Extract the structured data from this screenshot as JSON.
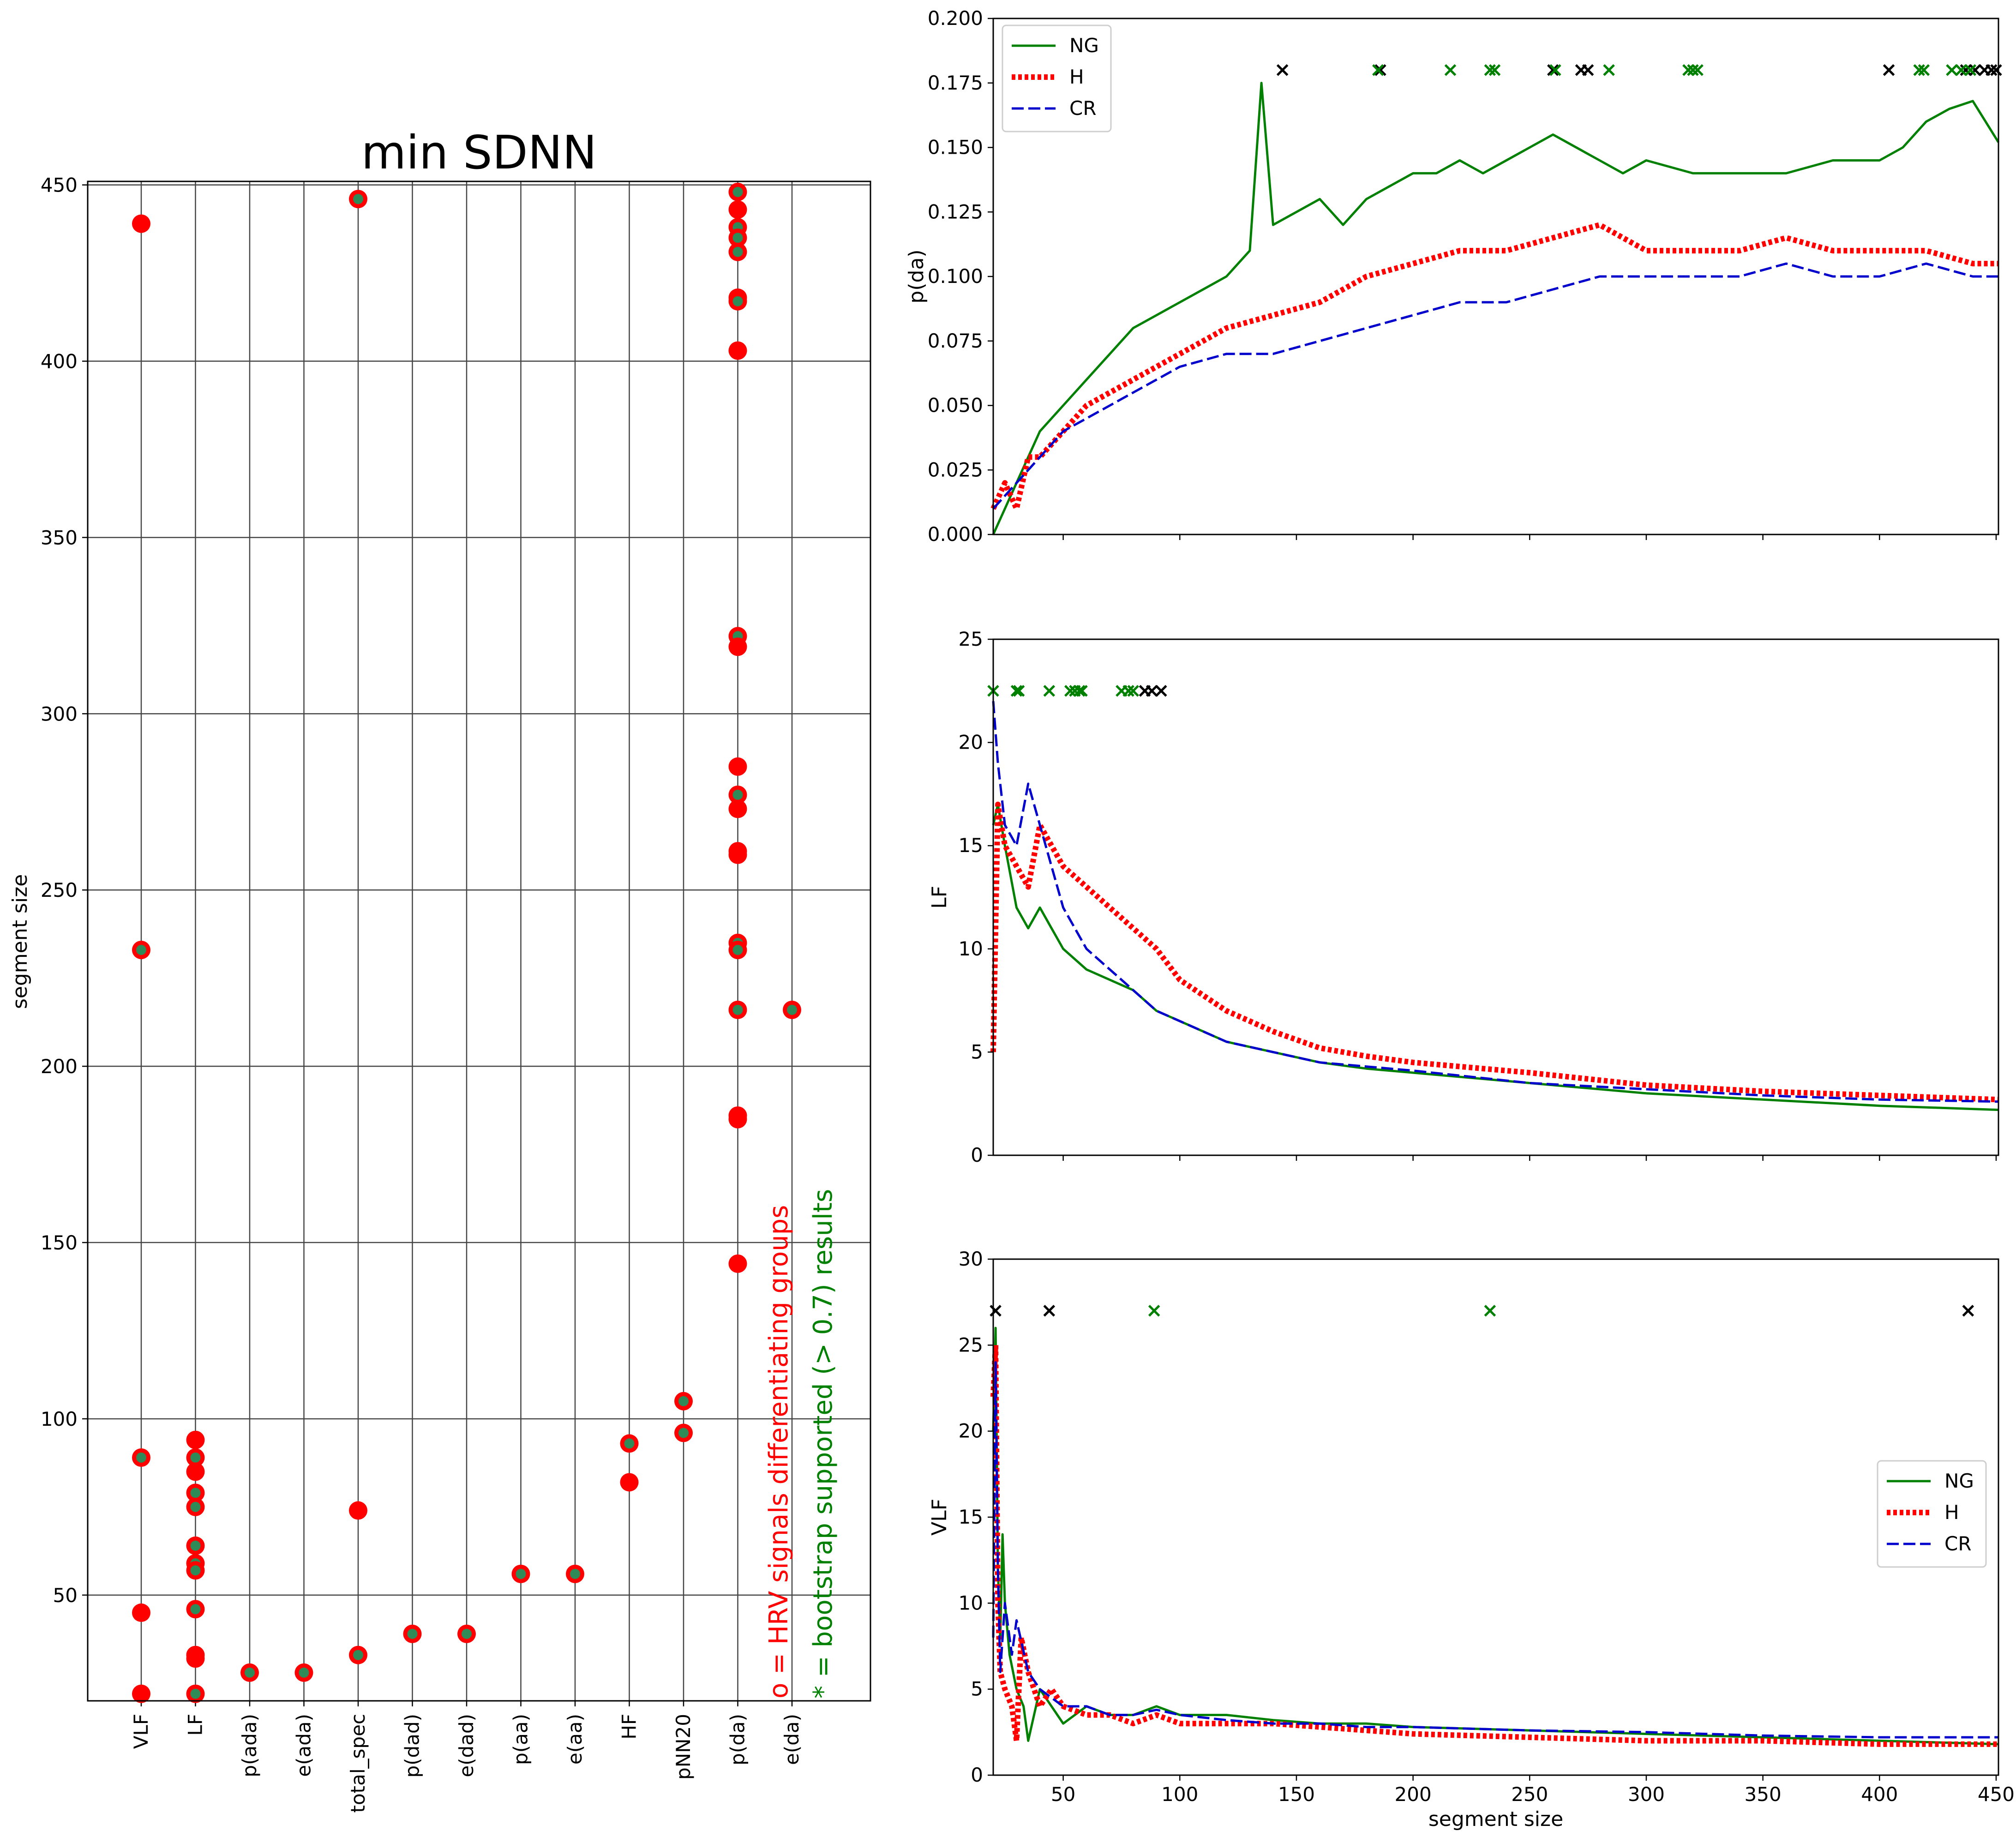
{
  "colors": {
    "NG": "#008000",
    "H": "#ff0000",
    "CR": "#0000cc",
    "marker_fill": "#ff0000",
    "marker_center": "#2e8b57",
    "cross_black": "#000000",
    "cross_green": "#008000"
  },
  "chart_data": [
    {
      "id": "left",
      "type": "scatter",
      "title": "min SDNN",
      "xlabel": "",
      "ylabel": "segment size",
      "ylim": [
        20,
        451
      ],
      "yticks": [
        "50",
        "100",
        "150",
        "200",
        "250",
        "300",
        "350",
        "400",
        "450"
      ],
      "categories": [
        "VLF",
        "LF",
        "p(ada)",
        "e(ada)",
        "total_spec",
        "p(dad)",
        "e(dad)",
        "p(aa)",
        "e(aa)",
        "HF",
        "pNN20",
        "p(da)",
        "e(da)"
      ],
      "points": [
        {
          "cat": 0,
          "y": 439,
          "b": 0
        },
        {
          "cat": 0,
          "y": 233,
          "b": 1
        },
        {
          "cat": 0,
          "y": 89,
          "b": 1
        },
        {
          "cat": 0,
          "y": 45,
          "b": 0
        },
        {
          "cat": 0,
          "y": 22,
          "b": 0
        },
        {
          "cat": 1,
          "y": 94,
          "b": 0
        },
        {
          "cat": 1,
          "y": 89,
          "b": 1
        },
        {
          "cat": 1,
          "y": 85,
          "b": 0
        },
        {
          "cat": 1,
          "y": 79,
          "b": 1
        },
        {
          "cat": 1,
          "y": 75,
          "b": 1
        },
        {
          "cat": 1,
          "y": 64,
          "b": 1
        },
        {
          "cat": 1,
          "y": 59,
          "b": 1
        },
        {
          "cat": 1,
          "y": 57,
          "b": 1
        },
        {
          "cat": 1,
          "y": 46,
          "b": 1
        },
        {
          "cat": 1,
          "y": 33,
          "b": 1
        },
        {
          "cat": 1,
          "y": 32,
          "b": 0
        },
        {
          "cat": 1,
          "y": 22,
          "b": 1
        },
        {
          "cat": 2,
          "y": 28,
          "b": 1
        },
        {
          "cat": 3,
          "y": 28,
          "b": 1
        },
        {
          "cat": 4,
          "y": 446,
          "b": 1
        },
        {
          "cat": 4,
          "y": 74,
          "b": 0
        },
        {
          "cat": 4,
          "y": 33,
          "b": 1
        },
        {
          "cat": 5,
          "y": 39,
          "b": 1
        },
        {
          "cat": 6,
          "y": 39,
          "b": 1
        },
        {
          "cat": 7,
          "y": 56,
          "b": 1
        },
        {
          "cat": 8,
          "y": 56,
          "b": 1
        },
        {
          "cat": 9,
          "y": 93,
          "b": 1
        },
        {
          "cat": 9,
          "y": 82,
          "b": 0
        },
        {
          "cat": 10,
          "y": 105,
          "b": 1
        },
        {
          "cat": 10,
          "y": 96,
          "b": 1
        },
        {
          "cat": 11,
          "y": 448,
          "b": 1
        },
        {
          "cat": 11,
          "y": 443,
          "b": 0
        },
        {
          "cat": 11,
          "y": 438,
          "b": 1
        },
        {
          "cat": 11,
          "y": 435,
          "b": 1
        },
        {
          "cat": 11,
          "y": 431,
          "b": 1
        },
        {
          "cat": 11,
          "y": 418,
          "b": 1
        },
        {
          "cat": 11,
          "y": 417,
          "b": 1
        },
        {
          "cat": 11,
          "y": 403,
          "b": 0
        },
        {
          "cat": 11,
          "y": 322,
          "b": 1
        },
        {
          "cat": 11,
          "y": 319,
          "b": 0
        },
        {
          "cat": 11,
          "y": 285,
          "b": 0
        },
        {
          "cat": 11,
          "y": 277,
          "b": 1
        },
        {
          "cat": 11,
          "y": 273,
          "b": 0
        },
        {
          "cat": 11,
          "y": 261,
          "b": 1
        },
        {
          "cat": 11,
          "y": 260,
          "b": 0
        },
        {
          "cat": 11,
          "y": 235,
          "b": 1
        },
        {
          "cat": 11,
          "y": 233,
          "b": 1
        },
        {
          "cat": 11,
          "y": 216,
          "b": 1
        },
        {
          "cat": 11,
          "y": 186,
          "b": 1
        },
        {
          "cat": 11,
          "y": 185,
          "b": 0
        },
        {
          "cat": 11,
          "y": 144,
          "b": 0
        },
        {
          "cat": 12,
          "y": 216,
          "b": 1
        }
      ],
      "annotations": [
        "o =  HRV signals differentiating groups",
        "* = bootstrap supported (> 0.7) results"
      ]
    },
    {
      "id": "pda",
      "type": "line",
      "ylabel": "p(da)",
      "xlim": [
        20,
        451
      ],
      "ylim": [
        0,
        0.2
      ],
      "yticks": [
        "0.000",
        "0.025",
        "0.050",
        "0.075",
        "0.100",
        "0.125",
        "0.150",
        "0.175",
        "0.200"
      ],
      "legend": {
        "position": "upper-left",
        "entries": [
          "NG",
          "H",
          "CR"
        ]
      },
      "series": [
        {
          "name": "NG",
          "style": "solid",
          "x": [
            20,
            25,
            30,
            35,
            40,
            45,
            50,
            60,
            70,
            80,
            90,
            100,
            110,
            120,
            130,
            135,
            140,
            150,
            160,
            170,
            180,
            190,
            200,
            210,
            220,
            230,
            240,
            250,
            260,
            270,
            280,
            290,
            300,
            320,
            340,
            360,
            380,
            400,
            410,
            420,
            430,
            440,
            451
          ],
          "y": [
            0.0,
            0.01,
            0.02,
            0.03,
            0.04,
            0.045,
            0.05,
            0.06,
            0.07,
            0.08,
            0.085,
            0.09,
            0.095,
            0.1,
            0.11,
            0.175,
            0.12,
            0.125,
            0.13,
            0.12,
            0.13,
            0.135,
            0.14,
            0.14,
            0.145,
            0.14,
            0.145,
            0.15,
            0.155,
            0.15,
            0.145,
            0.14,
            0.145,
            0.14,
            0.14,
            0.14,
            0.145,
            0.145,
            0.15,
            0.16,
            0.165,
            0.168,
            0.152
          ]
        },
        {
          "name": "H",
          "style": "dotted",
          "x": [
            20,
            25,
            30,
            35,
            40,
            45,
            50,
            60,
            70,
            80,
            90,
            100,
            120,
            140,
            160,
            180,
            200,
            220,
            240,
            260,
            280,
            300,
            320,
            340,
            360,
            380,
            400,
            420,
            440,
            451
          ],
          "y": [
            0.01,
            0.02,
            0.01,
            0.03,
            0.03,
            0.035,
            0.04,
            0.05,
            0.055,
            0.06,
            0.065,
            0.07,
            0.08,
            0.085,
            0.09,
            0.1,
            0.105,
            0.11,
            0.11,
            0.115,
            0.12,
            0.11,
            0.11,
            0.11,
            0.115,
            0.11,
            0.11,
            0.11,
            0.105,
            0.105
          ]
        },
        {
          "name": "CR",
          "style": "dashed",
          "x": [
            20,
            25,
            30,
            35,
            40,
            45,
            50,
            60,
            70,
            80,
            90,
            100,
            120,
            140,
            160,
            180,
            200,
            220,
            240,
            260,
            280,
            300,
            320,
            340,
            360,
            380,
            400,
            420,
            440,
            451
          ],
          "y": [
            0.01,
            0.015,
            0.02,
            0.025,
            0.03,
            0.035,
            0.04,
            0.045,
            0.05,
            0.055,
            0.06,
            0.065,
            0.07,
            0.07,
            0.075,
            0.08,
            0.085,
            0.09,
            0.09,
            0.095,
            0.1,
            0.1,
            0.1,
            0.1,
            0.105,
            0.1,
            0.1,
            0.105,
            0.1,
            0.1
          ]
        }
      ],
      "crosses": {
        "y": 0.18,
        "black": [
          144,
          186,
          260,
          272,
          275,
          404,
          437,
          441,
          445,
          448,
          450
        ],
        "green": [
          185,
          216,
          233,
          235,
          261,
          284,
          318,
          320,
          322,
          417,
          419,
          431,
          435,
          439
        ]
      }
    },
    {
      "id": "lf",
      "type": "line",
      "ylabel": "LF",
      "xlim": [
        20,
        451
      ],
      "ylim": [
        0,
        25
      ],
      "yticks": [
        "0",
        "5",
        "10",
        "15",
        "20",
        "25"
      ],
      "series": [
        {
          "name": "NG",
          "style": "solid",
          "x": [
            20,
            22,
            25,
            30,
            35,
            40,
            45,
            50,
            60,
            70,
            80,
            90,
            100,
            120,
            140,
            160,
            180,
            200,
            250,
            300,
            350,
            400,
            451
          ],
          "y": [
            16,
            17,
            15,
            12,
            11,
            12,
            11,
            10,
            9,
            8.5,
            8,
            7,
            6.5,
            5.5,
            5,
            4.5,
            4.2,
            4,
            3.5,
            3,
            2.7,
            2.4,
            2.2
          ]
        },
        {
          "name": "H",
          "style": "dotted",
          "x": [
            20,
            22,
            25,
            30,
            35,
            40,
            45,
            50,
            60,
            70,
            80,
            90,
            100,
            120,
            140,
            160,
            180,
            200,
            250,
            300,
            350,
            400,
            451
          ],
          "y": [
            5,
            17,
            15,
            14,
            13,
            16,
            15,
            14,
            13,
            12,
            11,
            10,
            8.5,
            7,
            6,
            5.2,
            4.8,
            4.5,
            4,
            3.4,
            3.1,
            2.9,
            2.7
          ]
        },
        {
          "name": "CR",
          "style": "dashed",
          "x": [
            20,
            22,
            25,
            30,
            35,
            40,
            45,
            50,
            60,
            70,
            80,
            90,
            100,
            120,
            140,
            160,
            180,
            200,
            250,
            300,
            350,
            400,
            451
          ],
          "y": [
            22,
            19,
            16,
            15,
            18,
            16,
            14,
            12,
            10,
            9,
            8,
            7,
            6.5,
            5.5,
            5,
            4.5,
            4.3,
            4.1,
            3.5,
            3.2,
            2.9,
            2.7,
            2.6
          ]
        }
      ],
      "crosses": {
        "y": 22.5,
        "black": [
          85,
          88,
          92
        ],
        "green": [
          20,
          30,
          31,
          44,
          53,
          55,
          57,
          58,
          75,
          78,
          80
        ]
      }
    },
    {
      "id": "vlf",
      "type": "line",
      "ylabel": "VLF",
      "xlabel": "segment size",
      "xlim": [
        20,
        451
      ],
      "ylim": [
        0,
        30
      ],
      "yticks": [
        "0",
        "5",
        "10",
        "15",
        "20",
        "25",
        "30"
      ],
      "xticks": [
        "50",
        "100",
        "150",
        "200",
        "250",
        "300",
        "350",
        "400",
        "450"
      ],
      "legend": {
        "position": "center-right",
        "entries": [
          "NG",
          "H",
          "CR"
        ]
      },
      "series": [
        {
          "name": "NG",
          "style": "solid",
          "x": [
            20,
            21,
            22,
            23,
            24,
            25,
            27,
            30,
            33,
            35,
            40,
            45,
            50,
            60,
            70,
            80,
            90,
            100,
            120,
            140,
            160,
            180,
            200,
            250,
            300,
            350,
            400,
            451
          ],
          "y": [
            20,
            26,
            12,
            8,
            14,
            10,
            7,
            5,
            4,
            2,
            5,
            4,
            3,
            4,
            3.5,
            3.5,
            4,
            3.5,
            3.5,
            3.2,
            3,
            3,
            2.8,
            2.6,
            2.4,
            2.2,
            2,
            1.8
          ]
        },
        {
          "name": "H",
          "style": "dotted",
          "x": [
            20,
            21,
            22,
            23,
            25,
            28,
            30,
            32,
            35,
            40,
            45,
            50,
            60,
            70,
            80,
            90,
            100,
            120,
            140,
            160,
            180,
            200,
            250,
            300,
            350,
            400,
            451
          ],
          "y": [
            22,
            25,
            10,
            6,
            5,
            4,
            2,
            8,
            6,
            4,
            5,
            4,
            3.5,
            3.5,
            3,
            3.5,
            3,
            3,
            3,
            2.8,
            2.6,
            2.4,
            2.2,
            2,
            2,
            1.8,
            1.8
          ]
        },
        {
          "name": "CR",
          "style": "dashed",
          "x": [
            20,
            21,
            22,
            23,
            25,
            28,
            30,
            35,
            40,
            45,
            50,
            60,
            70,
            80,
            90,
            100,
            120,
            140,
            160,
            180,
            200,
            250,
            300,
            350,
            400,
            451
          ],
          "y": [
            8,
            24,
            12,
            6,
            10,
            7,
            9,
            6,
            5,
            4.5,
            4,
            4,
            3.5,
            3.5,
            3.8,
            3.5,
            3.2,
            3,
            3,
            2.8,
            2.8,
            2.6,
            2.5,
            2.3,
            2.2,
            2.2
          ]
        }
      ],
      "crosses": {
        "y": 27,
        "black": [
          21,
          44,
          438
        ],
        "green": [
          89,
          233
        ]
      }
    }
  ]
}
